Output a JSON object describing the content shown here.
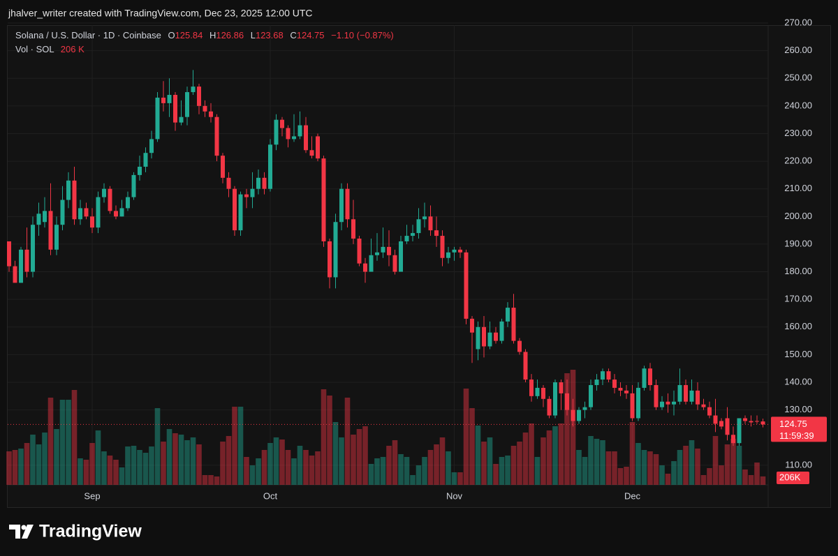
{
  "attribution": "jhalver_writer created with TradingView.com, Dec 23, 2025 12:00 UTC",
  "brand": "TradingView",
  "chart_data": {
    "type": "candlestick",
    "title": "Solana / U.S. Dollar · 1D · Coinbase",
    "ohlc_labels": [
      "O",
      "H",
      "L",
      "C"
    ],
    "change": "−1.10 (−0.87%)",
    "countdown": "11:59:39",
    "up_color": "#22ab94",
    "down_color": "#f23645",
    "grid": true,
    "ylim": [
      102.9,
      270
    ],
    "yticks": [
      {
        "value": 110,
        "label": "110.00"
      },
      {
        "value": 130,
        "label": "130.00"
      },
      {
        "value": 140,
        "label": "140.00"
      },
      {
        "value": 150,
        "label": "150.00"
      },
      {
        "value": 160,
        "label": "160.00"
      },
      {
        "value": 170,
        "label": "170.00"
      },
      {
        "value": 180,
        "label": "180.00"
      },
      {
        "value": 190,
        "label": "190.00"
      },
      {
        "value": 200,
        "label": "200.00"
      },
      {
        "value": 210,
        "label": "210.00"
      },
      {
        "value": 220,
        "label": "220.00"
      },
      {
        "value": 230,
        "label": "230.00"
      },
      {
        "value": 240,
        "label": "240.00"
      },
      {
        "value": 250,
        "label": "250.00"
      },
      {
        "value": 260,
        "label": "260.00"
      },
      {
        "value": 270,
        "label": "270.00"
      }
    ],
    "categories": [
      null,
      null,
      null,
      null,
      null,
      null,
      null,
      null,
      null,
      null,
      null,
      null,
      null,
      null,
      "Sep",
      null,
      null,
      null,
      null,
      null,
      null,
      null,
      null,
      null,
      null,
      null,
      null,
      null,
      null,
      null,
      null,
      null,
      null,
      null,
      null,
      null,
      null,
      null,
      null,
      null,
      null,
      null,
      null,
      null,
      "Oct",
      null,
      null,
      null,
      null,
      null,
      null,
      null,
      null,
      null,
      null,
      null,
      null,
      null,
      null,
      null,
      null,
      null,
      null,
      null,
      null,
      null,
      null,
      null,
      null,
      null,
      null,
      null,
      null,
      null,
      null,
      "Nov",
      null,
      null,
      null,
      null,
      null,
      null,
      null,
      null,
      null,
      null,
      null,
      null,
      null,
      null,
      null,
      null,
      null,
      null,
      null,
      null,
      null,
      null,
      null,
      null,
      null,
      null,
      null,
      null,
      null,
      "Dec",
      null,
      null,
      null,
      null,
      null,
      null,
      null,
      null,
      null,
      null,
      null,
      null,
      null,
      null,
      null,
      null,
      null,
      null,
      null,
      null,
      null,
      null
    ],
    "open": [
      191,
      182,
      176,
      188,
      180,
      197,
      198,
      202,
      188,
      197,
      206,
      213,
      199,
      203,
      200,
      196,
      207,
      210,
      202,
      200,
      203,
      207,
      215,
      218,
      223,
      228,
      243,
      241,
      244,
      234,
      236,
      245,
      247,
      240,
      238,
      236,
      222,
      214,
      210,
      195,
      208,
      207,
      210,
      214,
      210,
      226,
      235,
      232,
      228,
      229,
      233,
      224,
      229,
      221,
      191,
      178,
      198,
      210,
      199,
      192,
      183,
      180,
      186,
      187,
      189,
      186,
      180,
      191,
      193,
      194,
      199,
      200,
      195,
      193,
      185,
      187,
      188,
      187,
      163,
      152,
      160,
      153,
      158,
      155,
      162,
      167,
      155,
      151,
      141,
      135,
      138,
      134,
      128,
      140,
      136,
      130,
      126,
      130,
      131,
      139,
      141,
      144,
      141,
      138,
      137,
      136,
      127,
      138,
      145,
      139,
      131,
      133,
      132,
      133,
      139,
      133,
      137,
      132,
      131,
      128,
      126,
      127,
      121,
      118,
      127,
      126,
      126,
      125.84
    ],
    "high": [
      191,
      184,
      189,
      196,
      200,
      205,
      207,
      212,
      200,
      211,
      216,
      218,
      206,
      205,
      203,
      209,
      212,
      211,
      204,
      206,
      209,
      216,
      222,
      225,
      231,
      245,
      249,
      250,
      245,
      242,
      247,
      253,
      248,
      242,
      241,
      237,
      223,
      216,
      211,
      209,
      210,
      216,
      217,
      216,
      228,
      237,
      236,
      233,
      237,
      238,
      236,
      229,
      230,
      222,
      192,
      201,
      212,
      212,
      206,
      193,
      185,
      192,
      194,
      196,
      195,
      188,
      193,
      197,
      197,
      203,
      205,
      204,
      200,
      195,
      189,
      189,
      189,
      188,
      164,
      162,
      164,
      162,
      160,
      163,
      169,
      172,
      156,
      152,
      143,
      141,
      139,
      135,
      141,
      141,
      141,
      134,
      131,
      133,
      141,
      143,
      145,
      145,
      143,
      140,
      139,
      139,
      140,
      146,
      147,
      141,
      135,
      136,
      137,
      145,
      141,
      141,
      140,
      134,
      133,
      134,
      127,
      131,
      124,
      127,
      128,
      128,
      128,
      126.86
    ],
    "low": [
      180,
      176,
      176,
      178,
      178,
      193,
      196,
      186,
      186,
      195,
      203,
      197,
      197,
      199,
      194,
      194,
      205,
      201,
      199,
      200,
      202,
      206,
      213,
      216,
      221,
      227,
      238,
      236,
      231,
      233,
      233,
      244,
      237,
      236,
      234,
      220,
      212,
      207,
      193,
      193,
      203,
      203,
      208,
      208,
      209,
      224,
      229,
      225,
      227,
      228,
      223,
      221,
      220,
      189,
      174,
      174,
      195,
      196,
      190,
      182,
      176,
      180,
      184,
      185,
      182,
      179,
      180,
      190,
      191,
      192,
      196,
      193,
      189,
      182,
      183,
      184,
      185,
      161,
      147,
      148,
      149,
      152,
      154,
      154,
      160,
      154,
      150,
      140,
      133,
      134,
      131,
      127,
      127,
      130,
      128,
      124,
      125,
      127,
      130,
      137,
      139,
      140,
      136,
      135,
      134,
      126,
      126,
      137,
      137,
      130,
      130,
      129,
      128,
      132,
      132,
      132,
      130,
      130,
      127,
      122,
      123,
      119,
      117,
      117,
      125,
      124,
      125,
      123.68
    ],
    "close": [
      182,
      176,
      188,
      180,
      197,
      201,
      202,
      188,
      197,
      206,
      213,
      199,
      203,
      200,
      196,
      207,
      210,
      202,
      200,
      203,
      207,
      215,
      218,
      223,
      228,
      243,
      241,
      244,
      234,
      236,
      245,
      247,
      240,
      238,
      236,
      222,
      214,
      210,
      195,
      208,
      207,
      210,
      214,
      210,
      226,
      235,
      232,
      228,
      229,
      233,
      224,
      222,
      221,
      191,
      178,
      198,
      210,
      199,
      192,
      183,
      180,
      186,
      187,
      189,
      186,
      180,
      191,
      193,
      194,
      199,
      200,
      195,
      193,
      185,
      187,
      188,
      187,
      163,
      158,
      160,
      153,
      158,
      155,
      162,
      167,
      155,
      151,
      141,
      135,
      138,
      134,
      128,
      140,
      136,
      130,
      126,
      130,
      131,
      139,
      141,
      144,
      141,
      138,
      137,
      136,
      127,
      138,
      145,
      139,
      131,
      133,
      132,
      133,
      139,
      133,
      137,
      132,
      131,
      128,
      125,
      124,
      121,
      118,
      127,
      126,
      125.5,
      125.9,
      124.75
    ],
    "volume": {
      "name": "Vol · SOL",
      "value_label": "206 K",
      "tag_label": "206K",
      "values": [
        816,
        850,
        884,
        1020,
        1224,
        986,
        1275,
        2125,
        1360,
        2074,
        2074,
        2312,
        646,
        612,
        1020,
        1326,
        816,
        714,
        612,
        425,
        935,
        952,
        850,
        782,
        935,
        1870,
        1054,
        1360,
        1258,
        1224,
        1088,
        1156,
        986,
        238,
        238,
        204,
        1054,
        1190,
        1904,
        1904,
        680,
        476,
        646,
        850,
        1020,
        1156,
        1105,
        850,
        646,
        952,
        850,
        714,
        816,
        2329,
        2176,
        1530,
        1156,
        2125,
        1224,
        1360,
        1428,
        510,
        646,
        680,
        952,
        1088,
        748,
        680,
        238,
        476,
        680,
        850,
        986,
        1156,
        816,
        306,
        306,
        2346,
        1870,
        1445,
        1054,
        1156,
        510,
        680,
        714,
        952,
        1054,
        1275,
        1496,
        680,
        1156,
        1326,
        1428,
        1496,
        2720,
        2805,
        850,
        680,
        1190,
        1122,
        1088,
        816,
        816,
        408,
        442,
        1530,
        1020,
        850,
        816,
        748,
        476,
        272,
        578,
        850,
        952,
        1088,
        884,
        238,
        408,
        1190,
        476,
        986,
        1122,
        952,
        374,
        238,
        544,
        206
      ]
    }
  }
}
